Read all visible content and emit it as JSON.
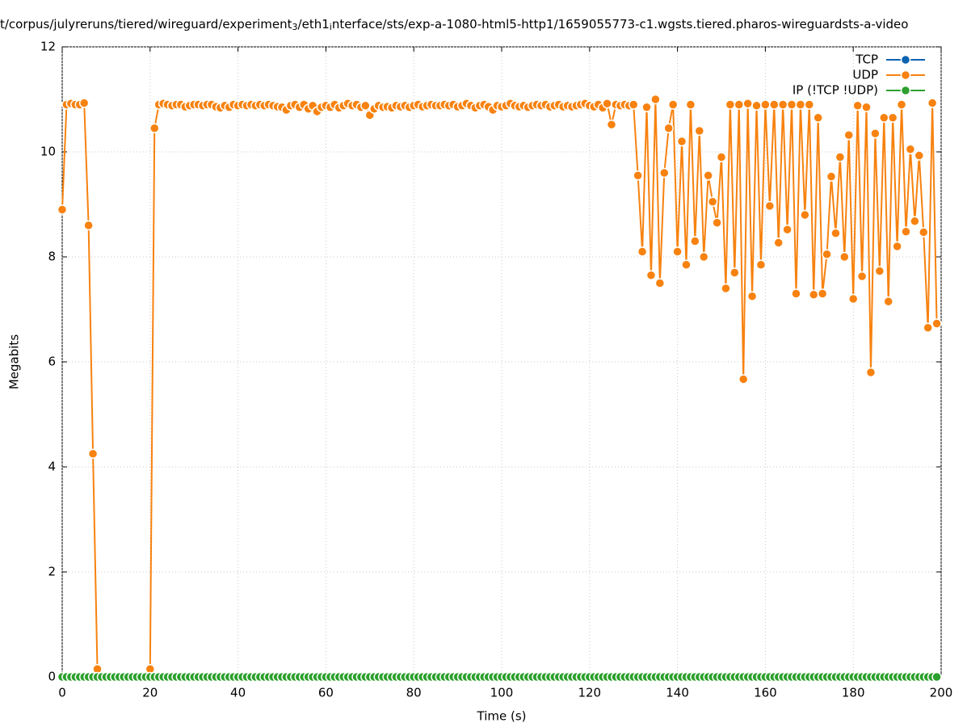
{
  "chart_data": {
    "type": "line",
    "title_parts": [
      "t/corpus/julyreruns/tiered/wireguard/experiment",
      "3",
      "/eth1",
      "i",
      "nterface/sts/exp-a-1080-html5-http1/1659055773-c1.wgsts.tiered.pharos-wireguardsts-a-video"
    ],
    "xlabel": "Time (s)",
    "ylabel": "Megabits",
    "xlim": [
      0,
      200
    ],
    "xticks": [
      0,
      20,
      40,
      60,
      80,
      100,
      120,
      140,
      160,
      180,
      200
    ],
    "ylim": [
      0,
      12
    ],
    "yticks": [
      0,
      2,
      4,
      6,
      8,
      10,
      12
    ],
    "grid": true,
    "legend": "top-right",
    "x": [
      0,
      1,
      2,
      3,
      4,
      5,
      6,
      7,
      8,
      9,
      10,
      11,
      12,
      13,
      14,
      15,
      16,
      17,
      18,
      19,
      20,
      21,
      22,
      23,
      24,
      25,
      26,
      27,
      28,
      29,
      30,
      31,
      32,
      33,
      34,
      35,
      36,
      37,
      38,
      39,
      40,
      41,
      42,
      43,
      44,
      45,
      46,
      47,
      48,
      49,
      50,
      51,
      52,
      53,
      54,
      55,
      56,
      57,
      58,
      59,
      60,
      61,
      62,
      63,
      64,
      65,
      66,
      67,
      68,
      69,
      70,
      71,
      72,
      73,
      74,
      75,
      76,
      77,
      78,
      79,
      80,
      81,
      82,
      83,
      84,
      85,
      86,
      87,
      88,
      89,
      90,
      91,
      92,
      93,
      94,
      95,
      96,
      97,
      98,
      99,
      100,
      101,
      102,
      103,
      104,
      105,
      106,
      107,
      108,
      109,
      110,
      111,
      112,
      113,
      114,
      115,
      116,
      117,
      118,
      119,
      120,
      121,
      122,
      123,
      124,
      125,
      126,
      127,
      128,
      129,
      130,
      131,
      132,
      133,
      134,
      135,
      136,
      137,
      138,
      139,
      140,
      141,
      142,
      143,
      144,
      145,
      146,
      147,
      148,
      149,
      150,
      151,
      152,
      153,
      154,
      155,
      156,
      157,
      158,
      159,
      160,
      161,
      162,
      163,
      164,
      165,
      166,
      167,
      168,
      169,
      170,
      171,
      172,
      173,
      174,
      175,
      176,
      177,
      178,
      179,
      180,
      181,
      182,
      183,
      184,
      185,
      186,
      187,
      188,
      189,
      190,
      191,
      192,
      193,
      194,
      195,
      196,
      197,
      198,
      199
    ],
    "series": [
      {
        "name": "TCP",
        "color": "#0b62b0",
        "values": [
          0,
          0,
          0,
          0,
          0,
          0,
          0,
          0,
          0,
          0,
          0,
          0,
          0,
          0,
          0,
          0,
          0,
          0,
          0,
          0,
          0,
          0,
          0,
          0,
          0,
          0,
          0,
          0,
          0,
          0,
          0,
          0,
          0,
          0,
          0,
          0,
          0,
          0,
          0,
          0,
          0,
          0,
          0,
          0,
          0,
          0,
          0,
          0,
          0,
          0,
          0,
          0,
          0,
          0,
          0,
          0,
          0,
          0,
          0,
          0,
          0,
          0,
          0,
          0,
          0,
          0,
          0,
          0,
          0,
          0,
          0,
          0,
          0,
          0,
          0,
          0,
          0,
          0,
          0,
          0,
          0,
          0,
          0,
          0,
          0,
          0,
          0,
          0,
          0,
          0,
          0,
          0,
          0,
          0,
          0,
          0,
          0,
          0,
          0,
          0,
          0,
          0,
          0,
          0,
          0,
          0,
          0,
          0,
          0,
          0,
          0,
          0,
          0,
          0,
          0,
          0,
          0,
          0,
          0,
          0,
          0,
          0,
          0,
          0,
          0,
          0,
          0,
          0,
          0,
          0,
          0,
          0,
          0,
          0,
          0,
          0,
          0,
          0,
          0,
          0,
          0,
          0,
          0,
          0,
          0,
          0,
          0,
          0,
          0,
          0,
          0,
          0,
          0,
          0,
          0,
          0,
          0,
          0,
          0,
          0,
          0,
          0,
          0,
          0,
          0,
          0,
          0,
          0,
          0,
          0,
          0,
          0,
          0,
          0,
          0,
          0,
          0,
          0,
          0,
          0,
          0,
          0,
          0,
          0,
          0,
          0,
          0,
          0,
          0,
          0,
          0,
          0,
          0,
          0,
          0,
          0,
          0,
          0,
          0,
          0
        ]
      },
      {
        "name": "UDP",
        "color": "#f7820f",
        "values": [
          8.9,
          10.9,
          10.92,
          10.9,
          10.9,
          10.93,
          8.6,
          4.25,
          0.15,
          0,
          0,
          0,
          0,
          0,
          0,
          0,
          0,
          0,
          0,
          0,
          0.15,
          10.45,
          10.9,
          10.92,
          10.9,
          10.88,
          10.9,
          10.9,
          10.86,
          10.88,
          10.9,
          10.9,
          10.88,
          10.9,
          10.9,
          10.86,
          10.84,
          10.88,
          10.85,
          10.9,
          10.88,
          10.9,
          10.88,
          10.9,
          10.88,
          10.9,
          10.88,
          10.9,
          10.88,
          10.86,
          10.85,
          10.8,
          10.88,
          10.9,
          10.85,
          10.9,
          10.82,
          10.88,
          10.77,
          10.85,
          10.88,
          10.85,
          10.9,
          10.84,
          10.88,
          10.92,
          10.88,
          10.9,
          10.85,
          10.88,
          10.7,
          10.82,
          10.88,
          10.85,
          10.86,
          10.84,
          10.88,
          10.86,
          10.88,
          10.85,
          10.88,
          10.9,
          10.86,
          10.88,
          10.9,
          10.88,
          10.88,
          10.9,
          10.88,
          10.9,
          10.86,
          10.88,
          10.92,
          10.88,
          10.84,
          10.88,
          10.9,
          10.86,
          10.8,
          10.88,
          10.86,
          10.88,
          10.92,
          10.88,
          10.86,
          10.88,
          10.85,
          10.88,
          10.9,
          10.88,
          10.9,
          10.86,
          10.88,
          10.9,
          10.86,
          10.88,
          10.86,
          10.88,
          10.9,
          10.92,
          10.88,
          10.86,
          10.9,
          10.84,
          10.92,
          10.52,
          10.9,
          10.88,
          10.9,
          10.88,
          10.9,
          9.55,
          8.1,
          10.85,
          7.65,
          11.0,
          7.5,
          9.6,
          10.45,
          10.9,
          8.1,
          10.2,
          7.85,
          10.9,
          8.3,
          10.4,
          8.0,
          9.55,
          9.05,
          8.65,
          9.9,
          7.4,
          10.9,
          7.7,
          10.9,
          5.67,
          10.92,
          7.25,
          10.88,
          7.85,
          10.9,
          8.97,
          10.9,
          8.27,
          10.9,
          8.52,
          10.9,
          7.3,
          10.9,
          8.8,
          10.9,
          7.28,
          10.65,
          7.3,
          8.05,
          9.53,
          8.45,
          9.9,
          8.0,
          10.32,
          7.2,
          10.88,
          7.63,
          10.85,
          5.8,
          10.35,
          7.73,
          10.65,
          7.15,
          10.65,
          8.2,
          10.9,
          8.48,
          10.05,
          8.68,
          9.93,
          8.47,
          6.65,
          10.93,
          6.73
        ]
      },
      {
        "name": "IP (!TCP  !UDP)",
        "color": "#2ca02c",
        "values": [
          0,
          0,
          0,
          0,
          0,
          0,
          0,
          0,
          0,
          0,
          0,
          0,
          0,
          0,
          0,
          0,
          0,
          0,
          0,
          0,
          0,
          0,
          0,
          0,
          0,
          0,
          0,
          0,
          0,
          0,
          0,
          0,
          0,
          0,
          0,
          0,
          0,
          0,
          0,
          0,
          0,
          0,
          0,
          0,
          0,
          0,
          0,
          0,
          0,
          0,
          0,
          0,
          0,
          0,
          0,
          0,
          0,
          0,
          0,
          0,
          0,
          0,
          0,
          0,
          0,
          0,
          0,
          0,
          0,
          0,
          0,
          0,
          0,
          0,
          0,
          0,
          0,
          0,
          0,
          0,
          0,
          0,
          0,
          0,
          0,
          0,
          0,
          0,
          0,
          0,
          0,
          0,
          0,
          0,
          0,
          0,
          0,
          0,
          0,
          0,
          0,
          0,
          0,
          0,
          0,
          0,
          0,
          0,
          0,
          0,
          0,
          0,
          0,
          0,
          0,
          0,
          0,
          0,
          0,
          0,
          0,
          0,
          0,
          0,
          0,
          0,
          0,
          0,
          0,
          0,
          0,
          0,
          0,
          0,
          0,
          0,
          0,
          0,
          0,
          0,
          0,
          0,
          0,
          0,
          0,
          0,
          0,
          0,
          0,
          0,
          0,
          0,
          0,
          0,
          0,
          0,
          0,
          0,
          0,
          0,
          0,
          0,
          0,
          0,
          0,
          0,
          0,
          0,
          0,
          0,
          0,
          0,
          0,
          0,
          0,
          0,
          0,
          0,
          0,
          0,
          0,
          0,
          0,
          0,
          0,
          0,
          0,
          0,
          0,
          0,
          0,
          0,
          0,
          0,
          0,
          0,
          0,
          0,
          0,
          0
        ]
      }
    ]
  }
}
